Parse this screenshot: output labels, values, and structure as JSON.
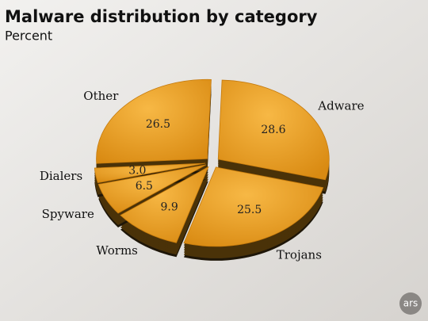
{
  "chart_data": {
    "type": "pie",
    "title": "Malware distribution by category",
    "subtitle": "Percent",
    "categories": [
      "Adware",
      "Trojans",
      "Worms",
      "Spyware",
      "Dialers",
      "Other"
    ],
    "values": [
      28.6,
      25.5,
      9.9,
      6.5,
      3.0,
      26.5
    ],
    "value_labels": [
      "28.6",
      "25.5",
      "9.9",
      "6.5",
      "3.0",
      "26.5"
    ],
    "color": "#f0a82a",
    "logo": "ars"
  }
}
